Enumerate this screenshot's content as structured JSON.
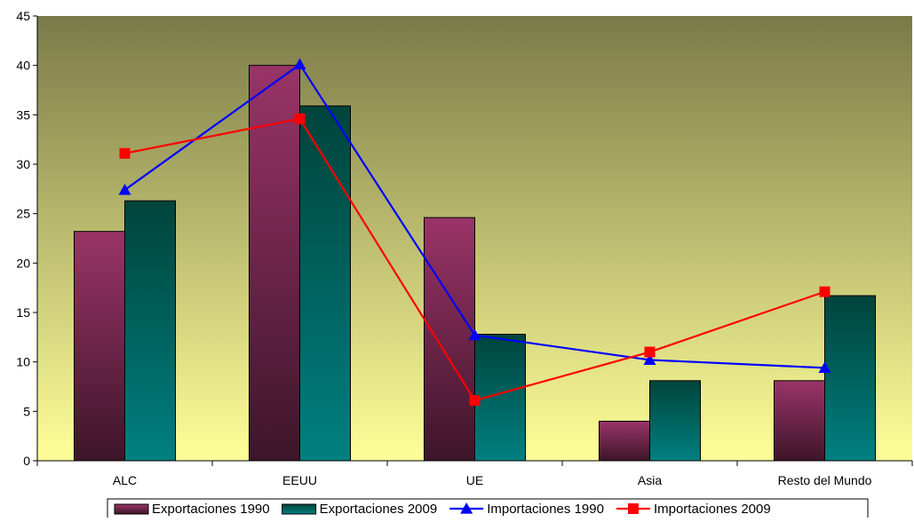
{
  "chart_data": {
    "type": "bar",
    "categories": [
      "ALC",
      "EEUU",
      "UE",
      "Asia",
      "Resto del Mundo"
    ],
    "ylim": [
      0,
      45
    ],
    "yticks": [
      0,
      5,
      10,
      15,
      20,
      25,
      30,
      35,
      40,
      45
    ],
    "series": [
      {
        "name": "Exportaciones 1990",
        "kind": "bar",
        "values": [
          23.2,
          40.0,
          24.6,
          4.0,
          8.1
        ]
      },
      {
        "name": "Exportaciones 2009",
        "kind": "bar",
        "values": [
          26.3,
          35.9,
          12.8,
          8.1,
          16.7
        ]
      },
      {
        "name": "Importaciones 1990",
        "kind": "line",
        "marker": "triangle",
        "color": "#0000ff",
        "values": [
          27.4,
          40.1,
          12.7,
          10.2,
          9.4
        ]
      },
      {
        "name": "Importaciones 2009",
        "kind": "line",
        "marker": "square",
        "color": "#ff0000",
        "values": [
          31.1,
          34.6,
          6.1,
          11.0,
          17.1
        ]
      }
    ],
    "colors": {
      "bar1_top": "#9a3468",
      "bar1_bottom": "#3d1528",
      "bar2_top": "#00443c",
      "bar2_bottom": "#008080",
      "plot_top": "#7a7a48",
      "plot_bottom": "#ffff99"
    },
    "grid": false,
    "legend_position": "bottom"
  }
}
